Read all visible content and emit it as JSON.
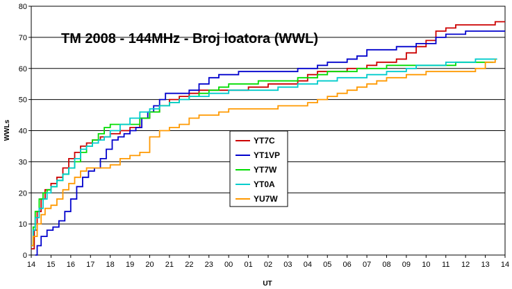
{
  "chart_data": {
    "type": "line",
    "title": "TM 2008 - 144MHz - Broj loatora (WWL)",
    "xlabel": "UT",
    "ylabel": "WWLs",
    "ylim": [
      0,
      80
    ],
    "yticks": [
      0,
      10,
      20,
      30,
      40,
      50,
      60,
      70,
      80
    ],
    "xlim": [
      0,
      24
    ],
    "xtick_labels": [
      "14",
      "15",
      "16",
      "17",
      "18",
      "19",
      "20",
      "21",
      "22",
      "23",
      "00",
      "01",
      "02",
      "03",
      "04",
      "05",
      "06",
      "07",
      "08",
      "09",
      "10",
      "11",
      "12",
      "13",
      "14"
    ],
    "grid": "horizontal",
    "legend_position": "center",
    "series": [
      {
        "name": "YT7C",
        "color": "#cc0000",
        "points": [
          [
            0,
            2
          ],
          [
            0.15,
            8
          ],
          [
            0.3,
            14
          ],
          [
            0.5,
            18
          ],
          [
            0.7,
            21
          ],
          [
            1,
            23
          ],
          [
            1.3,
            25
          ],
          [
            1.6,
            28
          ],
          [
            1.9,
            31
          ],
          [
            2.2,
            33
          ],
          [
            2.5,
            35
          ],
          [
            2.8,
            36
          ],
          [
            3.1,
            37
          ],
          [
            3.5,
            38
          ],
          [
            4,
            39
          ],
          [
            4.5,
            40
          ],
          [
            5,
            41
          ],
          [
            5.5,
            44
          ],
          [
            6,
            46
          ],
          [
            6.5,
            48
          ],
          [
            7,
            50
          ],
          [
            7.5,
            51
          ],
          [
            8,
            52
          ],
          [
            8.5,
            53
          ],
          [
            9,
            53
          ],
          [
            9.5,
            53
          ],
          [
            10,
            53
          ],
          [
            10.5,
            53
          ],
          [
            11,
            54
          ],
          [
            11.5,
            54
          ],
          [
            12,
            55
          ],
          [
            12.5,
            55
          ],
          [
            13,
            55
          ],
          [
            13.5,
            56
          ],
          [
            14,
            58
          ],
          [
            14.5,
            59
          ],
          [
            15,
            59
          ],
          [
            15.5,
            59
          ],
          [
            16,
            60
          ],
          [
            16.5,
            60
          ],
          [
            17,
            61
          ],
          [
            17.5,
            62
          ],
          [
            18,
            62
          ],
          [
            18.5,
            63
          ],
          [
            19,
            65
          ],
          [
            19.5,
            67
          ],
          [
            20,
            69
          ],
          [
            20.5,
            72
          ],
          [
            21,
            73
          ],
          [
            21.5,
            74
          ],
          [
            22,
            74
          ],
          [
            22.5,
            74
          ],
          [
            23,
            74
          ],
          [
            23.5,
            75
          ],
          [
            24,
            75
          ]
        ]
      },
      {
        "name": "YT1VP",
        "color": "#0000cc",
        "points": [
          [
            0.2,
            0
          ],
          [
            0.3,
            3
          ],
          [
            0.5,
            6
          ],
          [
            0.8,
            8
          ],
          [
            1.1,
            9
          ],
          [
            1.4,
            11
          ],
          [
            1.7,
            14
          ],
          [
            2,
            18
          ],
          [
            2.3,
            22
          ],
          [
            2.6,
            25
          ],
          [
            2.9,
            27
          ],
          [
            3.2,
            28
          ],
          [
            3.5,
            31
          ],
          [
            3.8,
            34
          ],
          [
            4.1,
            37
          ],
          [
            4.4,
            38
          ],
          [
            4.7,
            39
          ],
          [
            5,
            40
          ],
          [
            5.3,
            41
          ],
          [
            5.6,
            44
          ],
          [
            5.9,
            46
          ],
          [
            6.2,
            48
          ],
          [
            6.5,
            50
          ],
          [
            6.8,
            52
          ],
          [
            7.1,
            52
          ],
          [
            7.5,
            52
          ],
          [
            8,
            53
          ],
          [
            8.5,
            55
          ],
          [
            9,
            57
          ],
          [
            9.5,
            58
          ],
          [
            10,
            58
          ],
          [
            10.5,
            59
          ],
          [
            11,
            59
          ],
          [
            11.5,
            59
          ],
          [
            12,
            59
          ],
          [
            12.5,
            59
          ],
          [
            13,
            59
          ],
          [
            13.5,
            60
          ],
          [
            14,
            60
          ],
          [
            14.5,
            61
          ],
          [
            15,
            62
          ],
          [
            15.5,
            62
          ],
          [
            16,
            63
          ],
          [
            16.5,
            64
          ],
          [
            17,
            66
          ],
          [
            17.5,
            66
          ],
          [
            18,
            66
          ],
          [
            18.5,
            67
          ],
          [
            19,
            67
          ],
          [
            19.5,
            68
          ],
          [
            20,
            68
          ],
          [
            20.5,
            70
          ],
          [
            21,
            71
          ],
          [
            21.5,
            71
          ],
          [
            22,
            72
          ],
          [
            22.5,
            72
          ],
          [
            23,
            72
          ],
          [
            24,
            72
          ]
        ]
      },
      {
        "name": "YT7W",
        "color": "#00dd00",
        "points": [
          [
            0,
            3
          ],
          [
            0.1,
            9
          ],
          [
            0.2,
            14
          ],
          [
            0.4,
            18
          ],
          [
            0.6,
            20
          ],
          [
            0.8,
            21
          ],
          [
            1,
            22
          ],
          [
            1.3,
            24
          ],
          [
            1.6,
            26
          ],
          [
            1.9,
            28
          ],
          [
            2.2,
            30
          ],
          [
            2.5,
            33
          ],
          [
            2.8,
            35
          ],
          [
            3.1,
            37
          ],
          [
            3.4,
            39
          ],
          [
            3.7,
            41
          ],
          [
            4,
            42
          ],
          [
            4.5,
            42
          ],
          [
            5,
            42
          ],
          [
            5.5,
            44
          ],
          [
            6,
            46
          ],
          [
            6.5,
            48
          ],
          [
            7,
            49
          ],
          [
            7.5,
            50
          ],
          [
            8,
            51
          ],
          [
            8.5,
            52
          ],
          [
            9,
            53
          ],
          [
            9.5,
            54
          ],
          [
            10,
            55
          ],
          [
            10.5,
            55
          ],
          [
            11,
            55
          ],
          [
            11.5,
            56
          ],
          [
            12,
            56
          ],
          [
            12.5,
            56
          ],
          [
            13,
            56
          ],
          [
            13.5,
            57
          ],
          [
            14,
            57
          ],
          [
            14.5,
            58
          ],
          [
            15,
            59
          ],
          [
            15.5,
            59
          ],
          [
            16,
            59
          ],
          [
            16.5,
            60
          ],
          [
            17,
            60
          ],
          [
            17.5,
            60
          ],
          [
            18,
            61
          ],
          [
            18.5,
            61
          ],
          [
            19,
            61
          ],
          [
            19.5,
            61
          ],
          [
            20,
            61
          ],
          [
            20.5,
            61
          ],
          [
            21,
            61
          ],
          [
            21.5,
            62
          ],
          [
            22,
            62
          ],
          [
            22.5,
            62
          ],
          [
            23,
            62
          ],
          [
            23.4,
            62
          ]
        ]
      },
      {
        "name": "YT0A",
        "color": "#00cccc",
        "points": [
          [
            0,
            3
          ],
          [
            0.1,
            8
          ],
          [
            0.2,
            12
          ],
          [
            0.4,
            15
          ],
          [
            0.6,
            18
          ],
          [
            0.8,
            20
          ],
          [
            1,
            22
          ],
          [
            1.3,
            24
          ],
          [
            1.6,
            26
          ],
          [
            1.9,
            28
          ],
          [
            2.2,
            31
          ],
          [
            2.5,
            34
          ],
          [
            2.8,
            35
          ],
          [
            3.1,
            36
          ],
          [
            3.4,
            37
          ],
          [
            3.7,
            38
          ],
          [
            4,
            40
          ],
          [
            4.5,
            42
          ],
          [
            5,
            44
          ],
          [
            5.5,
            46
          ],
          [
            6,
            47
          ],
          [
            6.5,
            48
          ],
          [
            7,
            49
          ],
          [
            7.5,
            50
          ],
          [
            8,
            51
          ],
          [
            8.5,
            51
          ],
          [
            9,
            52
          ],
          [
            9.5,
            52
          ],
          [
            10,
            53
          ],
          [
            10.5,
            53
          ],
          [
            11,
            53
          ],
          [
            11.5,
            53
          ],
          [
            12,
            53
          ],
          [
            12.5,
            54
          ],
          [
            13,
            54
          ],
          [
            13.5,
            55
          ],
          [
            14,
            55
          ],
          [
            14.5,
            56
          ],
          [
            15,
            56
          ],
          [
            15.5,
            57
          ],
          [
            16,
            57
          ],
          [
            16.5,
            57
          ],
          [
            17,
            58
          ],
          [
            17.5,
            58
          ],
          [
            18,
            59
          ],
          [
            18.5,
            59
          ],
          [
            19,
            60
          ],
          [
            19.5,
            61
          ],
          [
            20,
            61
          ],
          [
            20.5,
            61
          ],
          [
            21,
            62
          ],
          [
            21.5,
            62
          ],
          [
            22,
            62
          ],
          [
            22.5,
            63
          ],
          [
            23,
            63
          ],
          [
            23.6,
            63
          ]
        ]
      },
      {
        "name": "YU7W",
        "color": "#ff9900",
        "points": [
          [
            0,
            3
          ],
          [
            0.1,
            6
          ],
          [
            0.3,
            10
          ],
          [
            0.5,
            13
          ],
          [
            0.7,
            15
          ],
          [
            1,
            16
          ],
          [
            1.3,
            18
          ],
          [
            1.6,
            21
          ],
          [
            1.9,
            23
          ],
          [
            2.2,
            25
          ],
          [
            2.5,
            27
          ],
          [
            2.8,
            28
          ],
          [
            3.1,
            28
          ],
          [
            3.5,
            28
          ],
          [
            4,
            29
          ],
          [
            4.5,
            31
          ],
          [
            5,
            32
          ],
          [
            5.5,
            33
          ],
          [
            6,
            38
          ],
          [
            6.5,
            40
          ],
          [
            7,
            41
          ],
          [
            7.5,
            42
          ],
          [
            8,
            44
          ],
          [
            8.5,
            45
          ],
          [
            9,
            45
          ],
          [
            9.5,
            46
          ],
          [
            10,
            47
          ],
          [
            10.5,
            47
          ],
          [
            11,
            47
          ],
          [
            11.5,
            47
          ],
          [
            12,
            47
          ],
          [
            12.5,
            48
          ],
          [
            13,
            48
          ],
          [
            13.5,
            48
          ],
          [
            14,
            49
          ],
          [
            14.5,
            50
          ],
          [
            15,
            51
          ],
          [
            15.5,
            52
          ],
          [
            16,
            53
          ],
          [
            16.5,
            54
          ],
          [
            17,
            55
          ],
          [
            17.5,
            56
          ],
          [
            18,
            57
          ],
          [
            18.5,
            57
          ],
          [
            19,
            58
          ],
          [
            19.5,
            58
          ],
          [
            20,
            59
          ],
          [
            20.5,
            59
          ],
          [
            21,
            59
          ],
          [
            21.5,
            59
          ],
          [
            22,
            59
          ],
          [
            22.5,
            60
          ],
          [
            23,
            62
          ],
          [
            23.5,
            63
          ]
        ]
      }
    ]
  }
}
